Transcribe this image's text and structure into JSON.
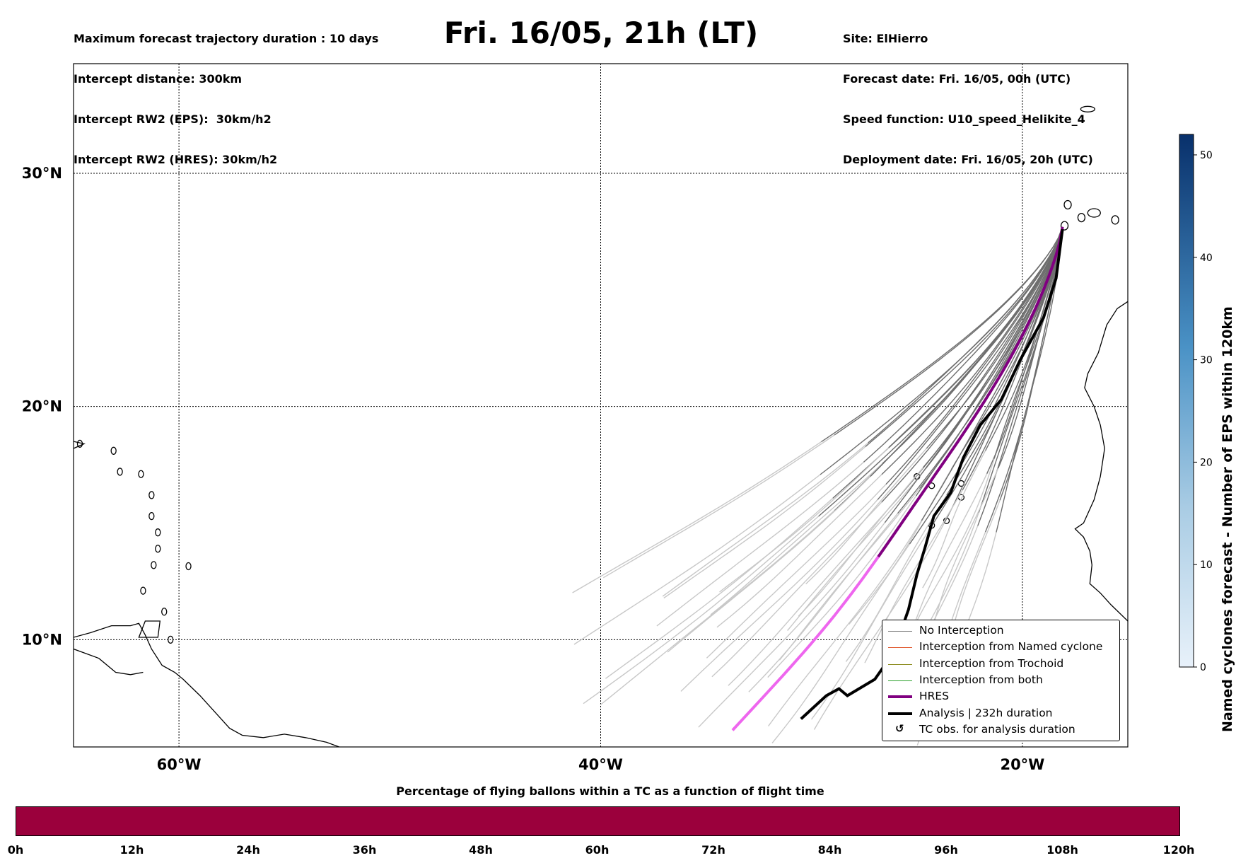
{
  "header": {
    "left_lines": [
      "Maximum forecast trajectory duration : 10 days",
      "Intercept distance: 300km",
      "Intercept RW2 (EPS):  30km/h2",
      "Intercept RW2 (HRES): 30km/h2"
    ],
    "title": "Fri. 16/05, 21h (LT)",
    "right_lines": [
      "Site: ElHierro",
      "Forecast date: Fri. 16/05, 00h (UTC)",
      "Speed function: U10_speed_Helikite_4",
      "Deployment date: Fri. 16/05, 20h (UTC)"
    ]
  },
  "map": {
    "lon_range": [
      -65,
      -15
    ],
    "lat_range": [
      5.4,
      34.7
    ],
    "lat_ticks": [
      {
        "value": 30,
        "label": "30°N"
      },
      {
        "value": 20,
        "label": "20°N"
      },
      {
        "value": 10,
        "label": "10°N"
      }
    ],
    "lon_ticks": [
      {
        "value": -60,
        "label": "60°W"
      },
      {
        "value": -40,
        "label": "40°W"
      },
      {
        "value": -20,
        "label": "20°W"
      }
    ],
    "site": {
      "name": "ElHierro",
      "lon": -18.1,
      "lat": 27.7
    }
  },
  "legend": {
    "items": [
      {
        "label": "No Interception",
        "color": "#808080"
      },
      {
        "label": "Interception from Named cyclone",
        "color": "#e0552a"
      },
      {
        "label": "Interception from Trochoid",
        "color": "#8a8a1a"
      },
      {
        "label": "Interception from both",
        "color": "#2ca02c"
      },
      {
        "label": "HRES",
        "color": "#800080"
      },
      {
        "label": "Analysis | 232h duration",
        "color": "#000000"
      },
      {
        "label": "TC obs. for analysis duration",
        "color": "#000000",
        "marker": "↺"
      }
    ]
  },
  "colorbar": {
    "title": "Named cyclones forecast - Number of EPS within 120km",
    "min": 0,
    "max": 52,
    "ticks": [
      "0",
      "10",
      "20",
      "30",
      "40",
      "50"
    ],
    "color_low": "#e3eef9",
    "color_high": "#08306b"
  },
  "percentage_bar": {
    "title": "Percentage of flying ballons within a TC as a function of flight time",
    "fill_color": "#9b003c",
    "ticks": [
      "0h",
      "12h",
      "24h",
      "36h",
      "48h",
      "60h",
      "72h",
      "84h",
      "96h",
      "108h",
      "120h"
    ]
  }
}
